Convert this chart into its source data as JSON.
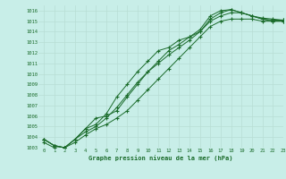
{
  "title": "Graphe pression niveau de la mer (hPa)",
  "bg_color": "#c8eee8",
  "grid_color": "#b8ddd4",
  "line_color": "#1a6b2a",
  "xlim": [
    -0.5,
    23
  ],
  "ylim": [
    1003,
    1016.5
  ],
  "yticks": [
    1003,
    1004,
    1005,
    1006,
    1007,
    1008,
    1009,
    1010,
    1011,
    1012,
    1013,
    1014,
    1015,
    1016
  ],
  "xticks": [
    0,
    1,
    2,
    3,
    4,
    5,
    6,
    7,
    8,
    9,
    10,
    11,
    12,
    13,
    14,
    15,
    16,
    17,
    18,
    19,
    20,
    21,
    22,
    23
  ],
  "series": [
    [
      1003.8,
      1003.2,
      1003.0,
      1003.8,
      1004.8,
      1005.2,
      1006.2,
      1007.8,
      1009.0,
      1010.2,
      1011.2,
      1012.2,
      1012.5,
      1013.2,
      1013.5,
      1014.0,
      1015.2,
      1015.8,
      1016.1,
      1015.8,
      1015.5,
      1015.3,
      1015.2,
      1015.1
    ],
    [
      1003.8,
      1003.2,
      1003.0,
      1003.8,
      1004.8,
      1005.8,
      1006.0,
      1006.5,
      1007.8,
      1009.0,
      1010.2,
      1011.2,
      1012.2,
      1012.8,
      1013.5,
      1014.2,
      1015.5,
      1016.0,
      1016.1,
      1015.8,
      1015.5,
      1015.2,
      1015.1,
      1015.1
    ],
    [
      1003.8,
      1003.2,
      1003.0,
      1003.8,
      1004.5,
      1005.0,
      1005.8,
      1006.8,
      1008.0,
      1009.2,
      1010.2,
      1011.0,
      1011.8,
      1012.5,
      1013.2,
      1014.0,
      1015.0,
      1015.5,
      1015.8,
      1015.8,
      1015.5,
      1015.2,
      1015.0,
      1015.0
    ],
    [
      1003.5,
      1003.0,
      1003.0,
      1003.5,
      1004.2,
      1004.8,
      1005.2,
      1005.8,
      1006.5,
      1007.5,
      1008.5,
      1009.5,
      1010.5,
      1011.5,
      1012.5,
      1013.5,
      1014.5,
      1015.0,
      1015.2,
      1015.2,
      1015.2,
      1015.0,
      1015.0,
      1015.0
    ]
  ]
}
